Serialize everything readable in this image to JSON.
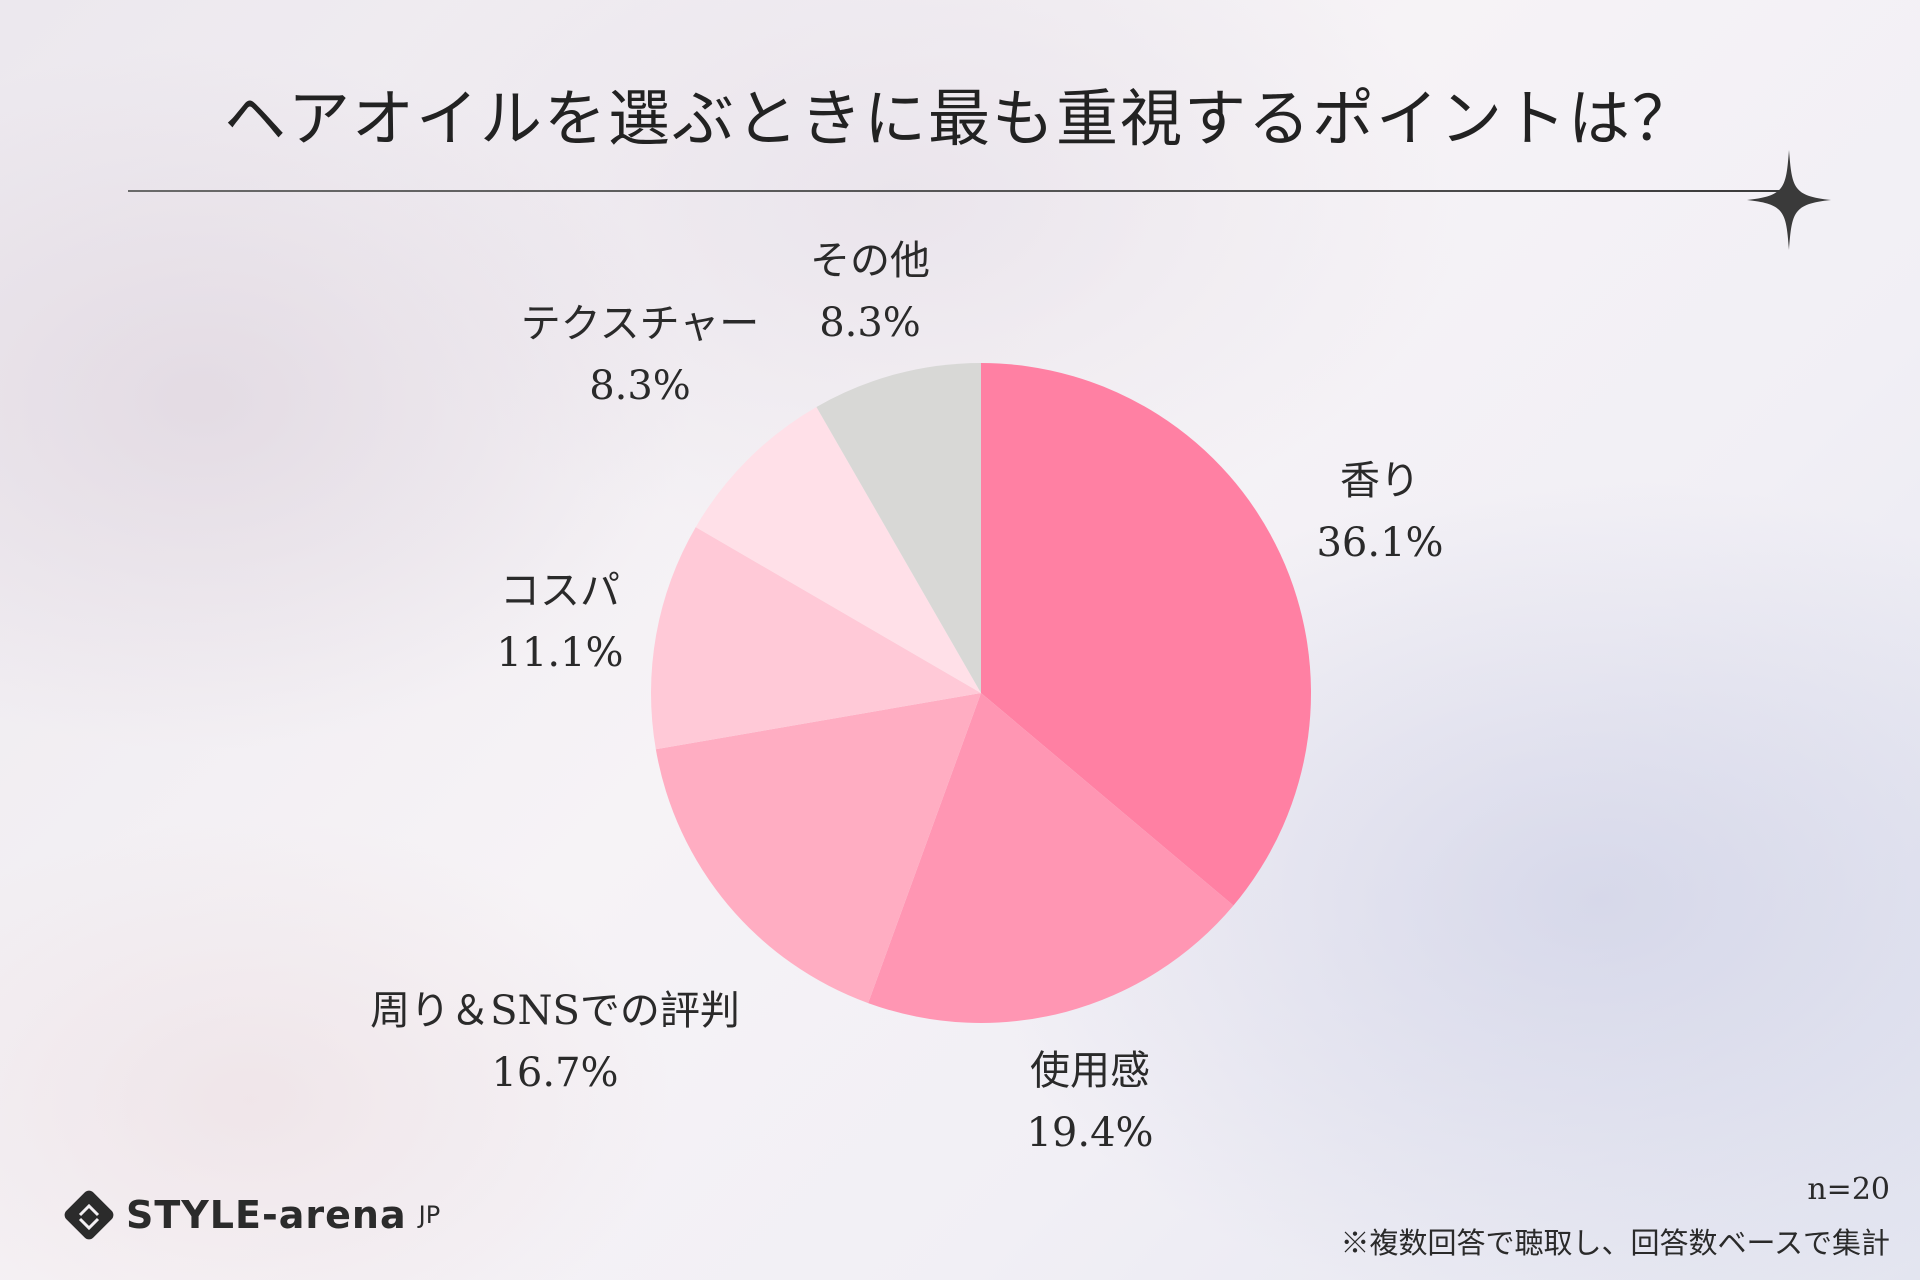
{
  "title": "ヘアオイルを選ぶときに最も重視するポイントは？",
  "chart_data": {
    "type": "pie",
    "title": "ヘアオイルを選ぶときに最も重視するポイントは？",
    "slices": [
      {
        "label": "香り",
        "value": 36.1,
        "value_label": "36.1%",
        "color": "#ff80a3"
      },
      {
        "label": "使用感",
        "value": 19.4,
        "value_label": "19.4%",
        "color": "#ff96b3"
      },
      {
        "label": "周り＆SNSでの評判",
        "value": 16.7,
        "value_label": "16.7%",
        "color": "#ffadc2"
      },
      {
        "label": "コスパ",
        "value": 11.1,
        "value_label": "11.1%",
        "color": "#ffc9d7"
      },
      {
        "label": "テクスチャー",
        "value": 8.3,
        "value_label": "8.3%",
        "color": "#ffe0e8"
      },
      {
        "label": "その他",
        "value": 8.3,
        "value_label": "8.3%",
        "color": "#d8d8d6"
      }
    ],
    "start": "12 o'clock",
    "direction": "clockwise"
  },
  "footer": {
    "sample": "n=20",
    "note": "※複数回答で聴取し、回答数ベースで集計",
    "logo_text": "STYLE-arena",
    "logo_suffix": "JP"
  }
}
